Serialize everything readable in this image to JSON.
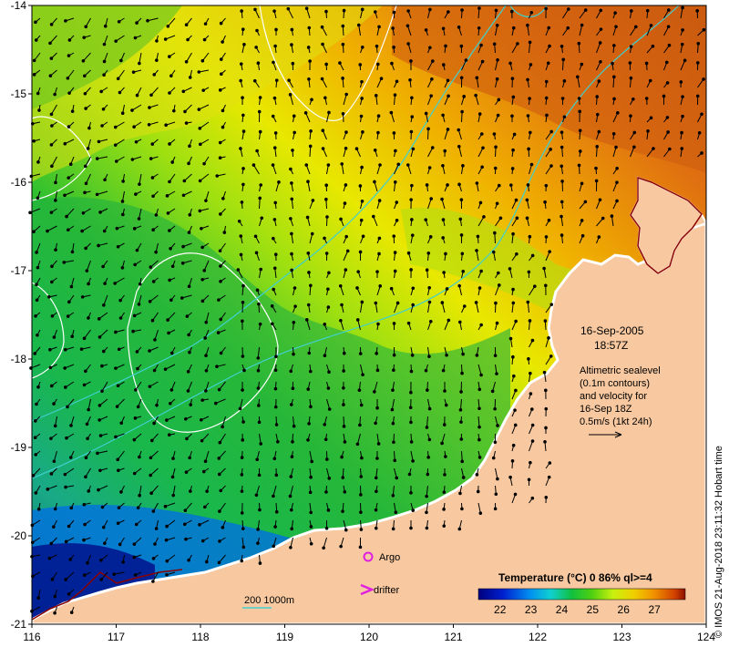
{
  "map": {
    "lon_range": [
      116,
      124
    ],
    "lat_range": [
      -21,
      -14
    ],
    "x_ticks": [
      "116",
      "117",
      "118",
      "119",
      "120",
      "121",
      "122",
      "123",
      "124"
    ],
    "y_ticks": [
      "-14",
      "-15",
      "-16",
      "-17",
      "-18",
      "-19",
      "-20",
      "-21"
    ]
  },
  "annotations": {
    "date": "16-Sep-2005",
    "time": "18:57Z",
    "altimetry_lines": [
      "Altimetric sealevel",
      "(0.1m contours)",
      "and velocity for",
      "16-Sep 18Z",
      "0.5m/s (1kt 24h)"
    ]
  },
  "legend": {
    "argo_label": "Argo",
    "drifter_label": "drifter",
    "depth_label": "200  1000m"
  },
  "colorbar": {
    "title": "Temperature (°C) 0 86% ql>=4",
    "ticks": [
      "22",
      "23",
      "24",
      "25",
      "26",
      "27"
    ]
  },
  "credit": "© IMOS 21-Aug-2018 23:11:32 Hobart time",
  "colors": {
    "land": "#f8c9a0",
    "coastline": "#ffffff",
    "cold_front": "#8b0000",
    "isobath": "#40d0d0",
    "sealevel_contour": "#ffffff",
    "argo": "#e020e0",
    "drifter": "#e020e0"
  }
}
